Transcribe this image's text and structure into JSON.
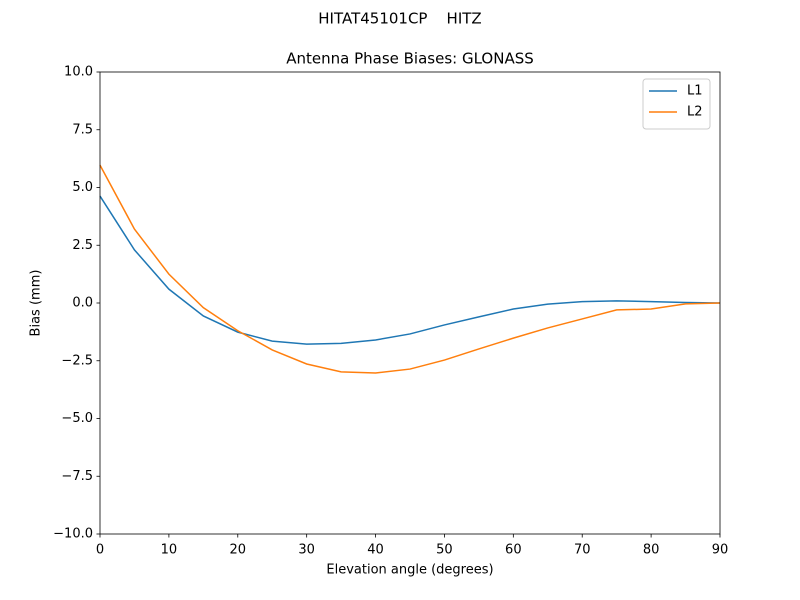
{
  "chart_data": {
    "type": "line",
    "suptitle": "HITAT45101CP    HITZ",
    "title": "Antenna Phase Biases: GLONASS",
    "x_label": "Elevation angle (degrees)",
    "y_label": "Bias (mm)",
    "x": [
      0,
      5,
      10,
      15,
      20,
      25,
      30,
      35,
      40,
      45,
      50,
      55,
      60,
      65,
      70,
      75,
      80,
      85,
      90
    ],
    "series": [
      {
        "name": "L1",
        "color": "#1f77b4",
        "values": [
          4.63,
          2.3,
          0.6,
          -0.56,
          -1.26,
          -1.65,
          -1.78,
          -1.75,
          -1.6,
          -1.34,
          -0.95,
          -0.6,
          -0.26,
          -0.05,
          0.06,
          0.09,
          0.06,
          0.02,
          0
        ]
      },
      {
        "name": "L2",
        "color": "#ff7f0e",
        "values": [
          5.97,
          3.2,
          1.25,
          -0.2,
          -1.2,
          -2.03,
          -2.64,
          -2.98,
          -3.03,
          -2.86,
          -2.47,
          -1.99,
          -1.52,
          -1.08,
          -0.69,
          -0.3,
          -0.26,
          -0.04,
          0
        ]
      }
    ],
    "xlim": [
      0,
      90
    ],
    "ylim": [
      -10,
      10
    ],
    "xticks": [
      0,
      10,
      20,
      30,
      40,
      50,
      60,
      70,
      80,
      90
    ],
    "yticks": [
      {
        "value": -10,
        "label": "−10.0"
      },
      {
        "value": -7.5,
        "label": "−7.5"
      },
      {
        "value": -5,
        "label": "−5.0"
      },
      {
        "value": -2.5,
        "label": "−2.5"
      },
      {
        "value": 0,
        "label": "0.0"
      },
      {
        "value": 2.5,
        "label": "2.5"
      },
      {
        "value": 5,
        "label": "5.0"
      },
      {
        "value": 7.5,
        "label": "7.5"
      },
      {
        "value": 10,
        "label": "10.0"
      }
    ],
    "legend": "upper right",
    "grid": false
  }
}
